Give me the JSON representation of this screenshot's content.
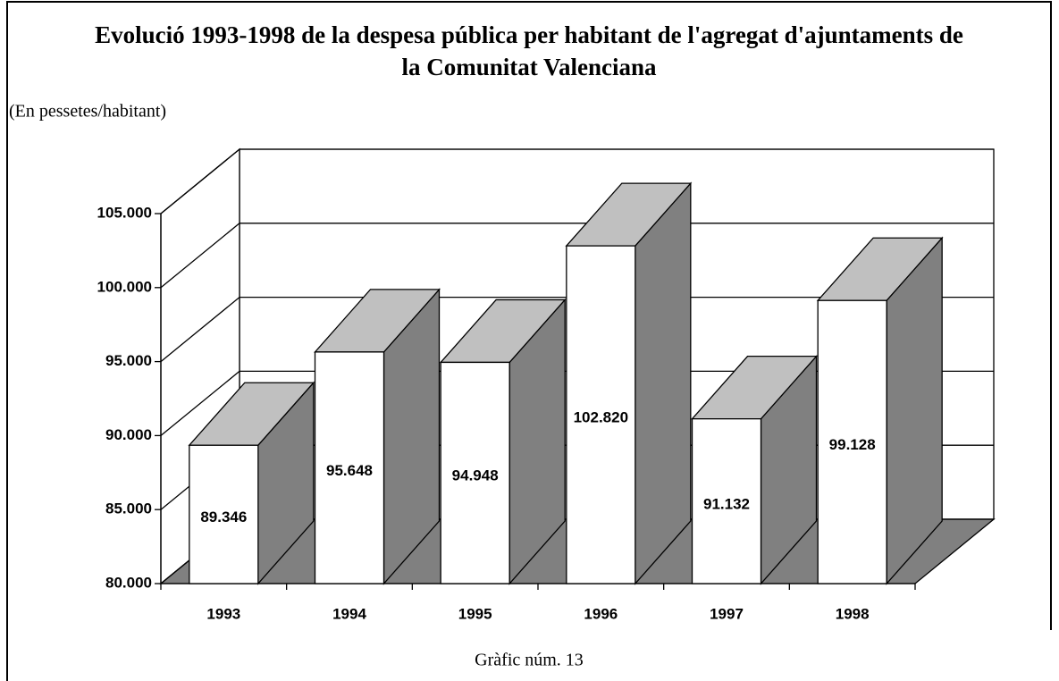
{
  "chart_data": {
    "type": "bar3d",
    "title": "Evolució 1993-1998 de la despesa pública per habitant de l'agregat d'ajuntaments de la Comunitat Valenciana",
    "subtitle": "(En pessetes/habitant)",
    "caption": "Gràfic núm. 13",
    "categories": [
      "1993",
      "1994",
      "1995",
      "1996",
      "1997",
      "1998"
    ],
    "values": [
      89346,
      95648,
      94948,
      102820,
      91132,
      99128
    ],
    "value_labels": [
      "89.346",
      "95.648",
      "94.948",
      "102.820",
      "91.132",
      "99.128"
    ],
    "ylim": [
      80000,
      105000
    ],
    "yticks": [
      {
        "value": 80000,
        "label": "80.000"
      },
      {
        "value": 85000,
        "label": "85.000"
      },
      {
        "value": 90000,
        "label": "90.000"
      },
      {
        "value": 95000,
        "label": "95.000"
      },
      {
        "value": 100000,
        "label": "100.000"
      },
      {
        "value": 105000,
        "label": "105.000"
      }
    ],
    "front_color": "#ffffff",
    "top_color": "#c0c0c0",
    "side_color": "#808080",
    "floor_color": "#808080",
    "grid": true
  }
}
